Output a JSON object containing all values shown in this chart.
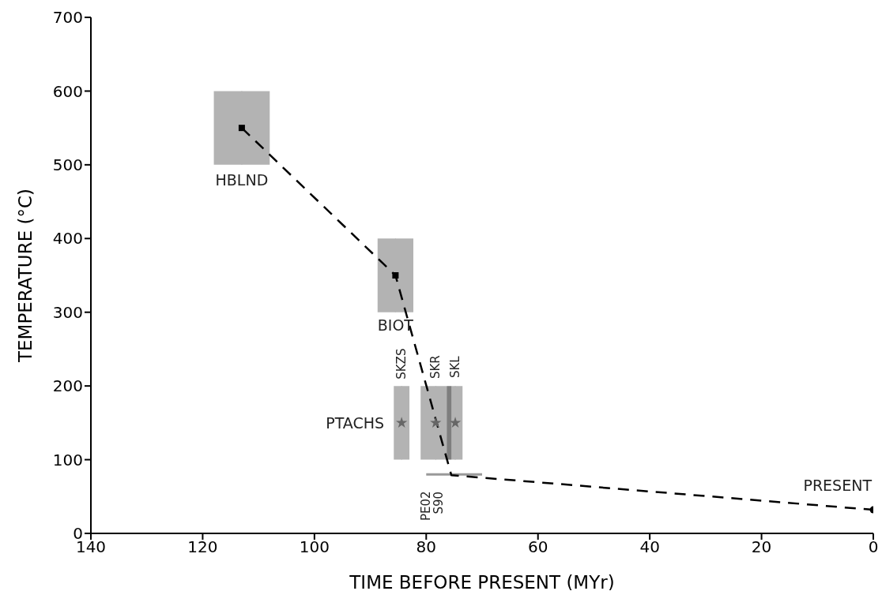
{
  "chart_data": {
    "type": "scatter",
    "xlabel": "TIME BEFORE PRESENT (MYr)",
    "ylabel": "TEMPERATURE (°C)",
    "xlim": [
      140,
      0
    ],
    "xticks": [
      140,
      120,
      100,
      80,
      60,
      40,
      20,
      0
    ],
    "ylim": [
      0,
      700
    ],
    "yticks": [
      0,
      100,
      200,
      300,
      400,
      500,
      600,
      700
    ],
    "series": [
      {
        "marker": "square",
        "color": "#000000",
        "x": [
          113,
          85.5
        ],
        "values": [
          550,
          350
        ],
        "xerrors": [
          [
            108,
            118
          ],
          [
            82.3,
            88.7
          ]
        ],
        "errors": [
          [
            500,
            600
          ],
          [
            300,
            400
          ]
        ]
      },
      {
        "marker": "star",
        "color": "#666666",
        "x": [
          84.4,
          78.3,
          74.8
        ],
        "values": [
          150,
          150,
          150
        ],
        "xerrors": [
          [
            83,
            85.8
          ],
          [
            75.5,
            81
          ],
          [
            73.5,
            76.3
          ]
        ],
        "errors": [
          [
            100,
            200
          ],
          [
            100,
            200
          ],
          [
            100,
            200
          ]
        ]
      },
      {
        "type": "line",
        "marker": "none",
        "color": "#999999",
        "x": [
          80,
          70
        ],
        "values": [
          80,
          80
        ]
      },
      {
        "type": "line",
        "line_style": "dashed",
        "marker": "none",
        "color": "#000000",
        "x": [
          113,
          85.5,
          75.5,
          0
        ],
        "values": [
          550,
          350,
          79,
          32
        ]
      },
      {
        "marker": "circle",
        "color": "#000000",
        "x": [
          0
        ],
        "values": [
          32
        ]
      }
    ],
    "annotations": [
      {
        "text": "HBLND",
        "x": 113,
        "y": 550
      },
      {
        "text": "BIOT",
        "x": 85.5,
        "y": 350
      },
      {
        "text": "PTACHS",
        "x": 84.4,
        "y": 150
      },
      {
        "text": "SKZS",
        "x": 84.4,
        "y": 200
      },
      {
        "text": "SKR",
        "x": 78.3,
        "y": 200
      },
      {
        "text": "SKL",
        "x": 74.8,
        "y": 200
      },
      {
        "text": "PE02",
        "x": 80,
        "y": 80
      },
      {
        "text": "S90",
        "x": 77.8,
        "y": 80
      },
      {
        "text": "PRESENT",
        "x": 0,
        "y": 32
      }
    ]
  }
}
